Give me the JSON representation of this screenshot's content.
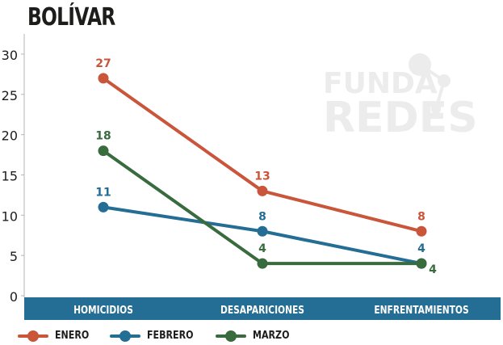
{
  "title": "BOLÍVAR",
  "watermark": {
    "line1": "FUNDA",
    "line2": "REDES"
  },
  "chart_data": {
    "type": "line",
    "categories": [
      "HOMICIDIOS",
      "DESAPARICIONES",
      "ENFRENTAMIENTOS"
    ],
    "series": [
      {
        "name": "ENERO",
        "values": [
          27,
          13,
          8
        ],
        "color": "#c9553a"
      },
      {
        "name": "FEBRERO",
        "values": [
          11,
          8,
          4
        ],
        "color": "#246d94"
      },
      {
        "name": "MARZO",
        "values": [
          18,
          4,
          4
        ],
        "color": "#386b3d"
      }
    ],
    "ylim": [
      0,
      30
    ],
    "yticks": [
      0,
      5,
      10,
      15,
      20,
      25,
      30
    ],
    "grid": false,
    "legend": "bottom",
    "category_band_color": "#246d94"
  }
}
